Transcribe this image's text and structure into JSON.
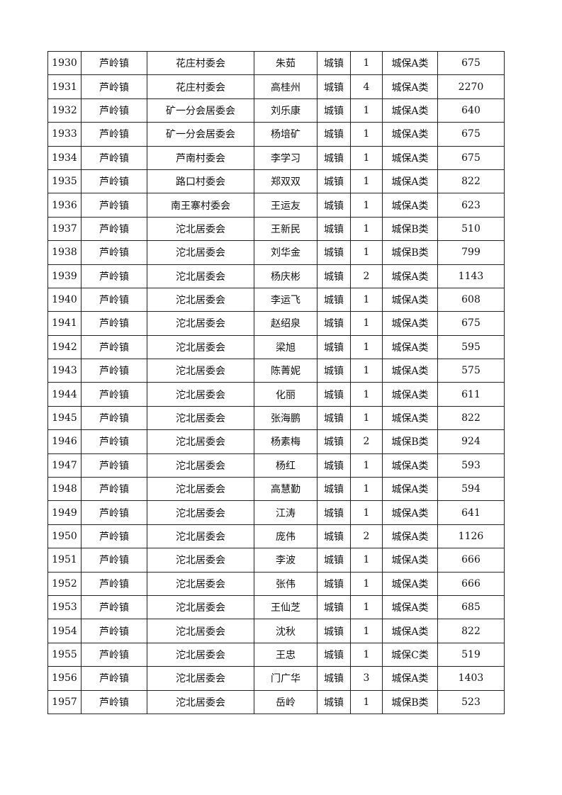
{
  "table": {
    "rows": [
      [
        "1930",
        "芦岭镇",
        "花庄村委会",
        "朱茹",
        "城镇",
        "1",
        "城保A类",
        "675"
      ],
      [
        "1931",
        "芦岭镇",
        "花庄村委会",
        "高桂州",
        "城镇",
        "4",
        "城保A类",
        "2270"
      ],
      [
        "1932",
        "芦岭镇",
        "矿一分会居委会",
        "刘乐康",
        "城镇",
        "1",
        "城保A类",
        "640"
      ],
      [
        "1933",
        "芦岭镇",
        "矿一分会居委会",
        "杨培矿",
        "城镇",
        "1",
        "城保A类",
        "675"
      ],
      [
        "1934",
        "芦岭镇",
        "芦南村委会",
        "李学习",
        "城镇",
        "1",
        "城保A类",
        "675"
      ],
      [
        "1935",
        "芦岭镇",
        "路口村委会",
        "郑双双",
        "城镇",
        "1",
        "城保A类",
        "822"
      ],
      [
        "1936",
        "芦岭镇",
        "南王寨村委会",
        "王运友",
        "城镇",
        "1",
        "城保A类",
        "623"
      ],
      [
        "1937",
        "芦岭镇",
        "沱北居委会",
        "王新民",
        "城镇",
        "1",
        "城保B类",
        "510"
      ],
      [
        "1938",
        "芦岭镇",
        "沱北居委会",
        "刘华金",
        "城镇",
        "1",
        "城保B类",
        "799"
      ],
      [
        "1939",
        "芦岭镇",
        "沱北居委会",
        "杨庆彬",
        "城镇",
        "2",
        "城保A类",
        "1143"
      ],
      [
        "1940",
        "芦岭镇",
        "沱北居委会",
        "李运飞",
        "城镇",
        "1",
        "城保A类",
        "608"
      ],
      [
        "1941",
        "芦岭镇",
        "沱北居委会",
        "赵绍泉",
        "城镇",
        "1",
        "城保A类",
        "675"
      ],
      [
        "1942",
        "芦岭镇",
        "沱北居委会",
        "梁旭",
        "城镇",
        "1",
        "城保A类",
        "595"
      ],
      [
        "1943",
        "芦岭镇",
        "沱北居委会",
        "陈菁妮",
        "城镇",
        "1",
        "城保A类",
        "575"
      ],
      [
        "1944",
        "芦岭镇",
        "沱北居委会",
        "化丽",
        "城镇",
        "1",
        "城保A类",
        "611"
      ],
      [
        "1945",
        "芦岭镇",
        "沱北居委会",
        "张海鹏",
        "城镇",
        "1",
        "城保A类",
        "822"
      ],
      [
        "1946",
        "芦岭镇",
        "沱北居委会",
        "杨素梅",
        "城镇",
        "2",
        "城保B类",
        "924"
      ],
      [
        "1947",
        "芦岭镇",
        "沱北居委会",
        "杨红",
        "城镇",
        "1",
        "城保A类",
        "593"
      ],
      [
        "1948",
        "芦岭镇",
        "沱北居委会",
        "高慧勤",
        "城镇",
        "1",
        "城保A类",
        "594"
      ],
      [
        "1949",
        "芦岭镇",
        "沱北居委会",
        "江涛",
        "城镇",
        "1",
        "城保A类",
        "641"
      ],
      [
        "1950",
        "芦岭镇",
        "沱北居委会",
        "庞伟",
        "城镇",
        "2",
        "城保A类",
        "1126"
      ],
      [
        "1951",
        "芦岭镇",
        "沱北居委会",
        "李波",
        "城镇",
        "1",
        "城保A类",
        "666"
      ],
      [
        "1952",
        "芦岭镇",
        "沱北居委会",
        "张伟",
        "城镇",
        "1",
        "城保A类",
        "666"
      ],
      [
        "1953",
        "芦岭镇",
        "沱北居委会",
        "王仙芝",
        "城镇",
        "1",
        "城保A类",
        "685"
      ],
      [
        "1954",
        "芦岭镇",
        "沱北居委会",
        "沈秋",
        "城镇",
        "1",
        "城保A类",
        "822"
      ],
      [
        "1955",
        "芦岭镇",
        "沱北居委会",
        "王忠",
        "城镇",
        "1",
        "城保C类",
        "519"
      ],
      [
        "1956",
        "芦岭镇",
        "沱北居委会",
        "门广华",
        "城镇",
        "3",
        "城保A类",
        "1403"
      ],
      [
        "1957",
        "芦岭镇",
        "沱北居委会",
        "岳岭",
        "城镇",
        "1",
        "城保B类",
        "523"
      ]
    ]
  }
}
